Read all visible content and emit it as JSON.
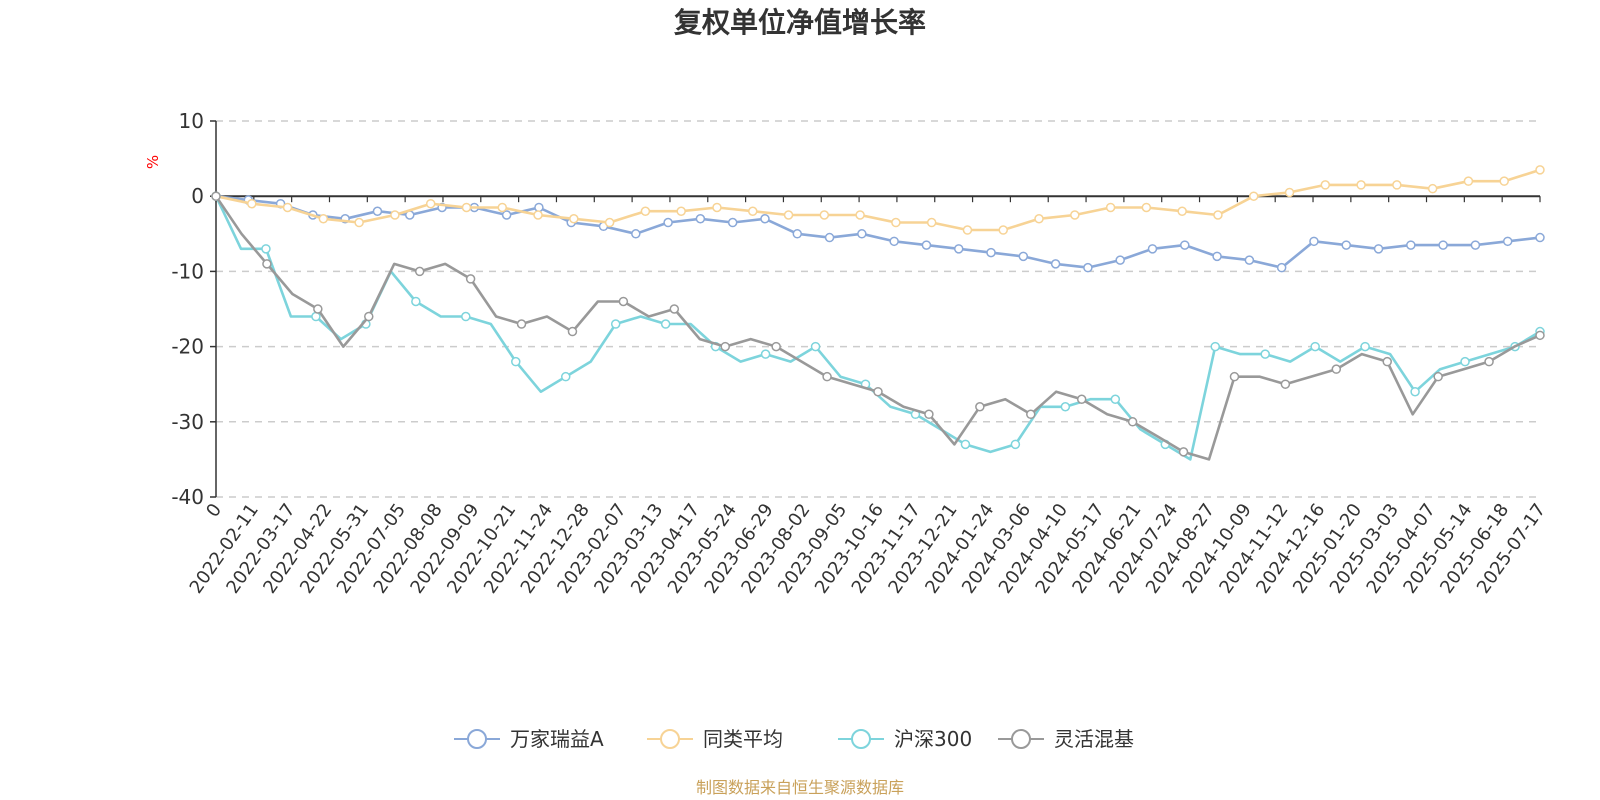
{
  "chart_data": {
    "type": "line",
    "title": "复权单位净值增长率",
    "ylabel": "%",
    "ylim": [
      -40,
      10
    ],
    "yticks": [
      10,
      0,
      -10,
      -20,
      -30,
      -40
    ],
    "grid": true,
    "legend_position": "bottom",
    "xtick_labels": [
      "0",
      "2022-02-11",
      "2022-03-17",
      "2022-04-22",
      "2022-05-31",
      "2022-07-05",
      "2022-08-08",
      "2022-09-09",
      "2022-10-21",
      "2022-11-24",
      "2022-12-28",
      "2023-02-07",
      "2023-03-13",
      "2023-04-17",
      "2023-05-24",
      "2023-06-29",
      "2023-08-02",
      "2023-09-05",
      "2023-10-16",
      "2023-11-17",
      "2023-12-21",
      "2024-01-24",
      "2024-03-06",
      "2024-04-10",
      "2024-05-17",
      "2024-06-21",
      "2024-07-24",
      "2024-08-27",
      "2024-10-09",
      "2024-11-12",
      "2024-12-16",
      "2025-01-20",
      "2025-03-03",
      "2025-04-07",
      "2025-05-14",
      "2025-06-18",
      "2025-07-17"
    ],
    "series": [
      {
        "name": "万家瑞益A",
        "color": "#8aa8d8",
        "values": [
          0,
          -0.5,
          -1,
          -2.5,
          -3,
          -2,
          -2.5,
          -1.5,
          -1.5,
          -2.5,
          -1.5,
          -3.5,
          -4,
          -5,
          -3.5,
          -3,
          -3.5,
          -3,
          -5,
          -5.5,
          -5,
          -6,
          -6.5,
          -7,
          -7.5,
          -8,
          -9,
          -9.5,
          -8.5,
          -7,
          -6.5,
          -8,
          -8.5,
          -9.5,
          -6,
          -6.5,
          -7,
          -6.5,
          -6.5,
          -6.5,
          -6,
          -5.5
        ]
      },
      {
        "name": "同类平均",
        "color": "#f7d395",
        "values": [
          0,
          -1,
          -1.5,
          -3,
          -3.5,
          -2.5,
          -1,
          -1.5,
          -1.5,
          -2.5,
          -3,
          -3.5,
          -2,
          -2,
          -1.5,
          -2,
          -2.5,
          -2.5,
          -2.5,
          -3.5,
          -3.5,
          -4.5,
          -4.5,
          -3,
          -2.5,
          -1.5,
          -1.5,
          -2,
          -2.5,
          0,
          0.5,
          1.5,
          1.5,
          1.5,
          1,
          2,
          2,
          3.5
        ]
      },
      {
        "name": "沪深300",
        "color": "#7dd4dc",
        "values": [
          0,
          -7,
          -7,
          -16,
          -16,
          -19,
          -17,
          -10,
          -14,
          -16,
          -16,
          -17,
          -22,
          -26,
          -24,
          -22,
          -17,
          -16,
          -17,
          -17,
          -20,
          -22,
          -21,
          -22,
          -20,
          -24,
          -25,
          -28,
          -29,
          -31,
          -33,
          -34,
          -33,
          -28,
          -28,
          -27,
          -27,
          -31,
          -33,
          -35,
          -20,
          -21,
          -21,
          -22,
          -20,
          -22,
          -20,
          -21,
          -26,
          -23,
          -22,
          -21,
          -20,
          -18
        ]
      },
      {
        "name": "灵活混基",
        "color": "#999999",
        "values": [
          0,
          -5,
          -9,
          -13,
          -15,
          -20,
          -16,
          -9,
          -10,
          -9,
          -11,
          -16,
          -17,
          -16,
          -18,
          -14,
          -14,
          -16,
          -15,
          -19,
          -20,
          -19,
          -20,
          -22,
          -24,
          -25,
          -26,
          -28,
          -29,
          -33,
          -28,
          -27,
          -29,
          -26,
          -27,
          -29,
          -30,
          -32,
          -34,
          -35,
          -24,
          -24,
          -25,
          -24,
          -23,
          -21,
          -22,
          -29,
          -24,
          -23,
          -22,
          -20,
          -18.5
        ]
      }
    ]
  },
  "source_text": "制图数据来自恒生聚源数据库",
  "source_color": "#c9a15a"
}
